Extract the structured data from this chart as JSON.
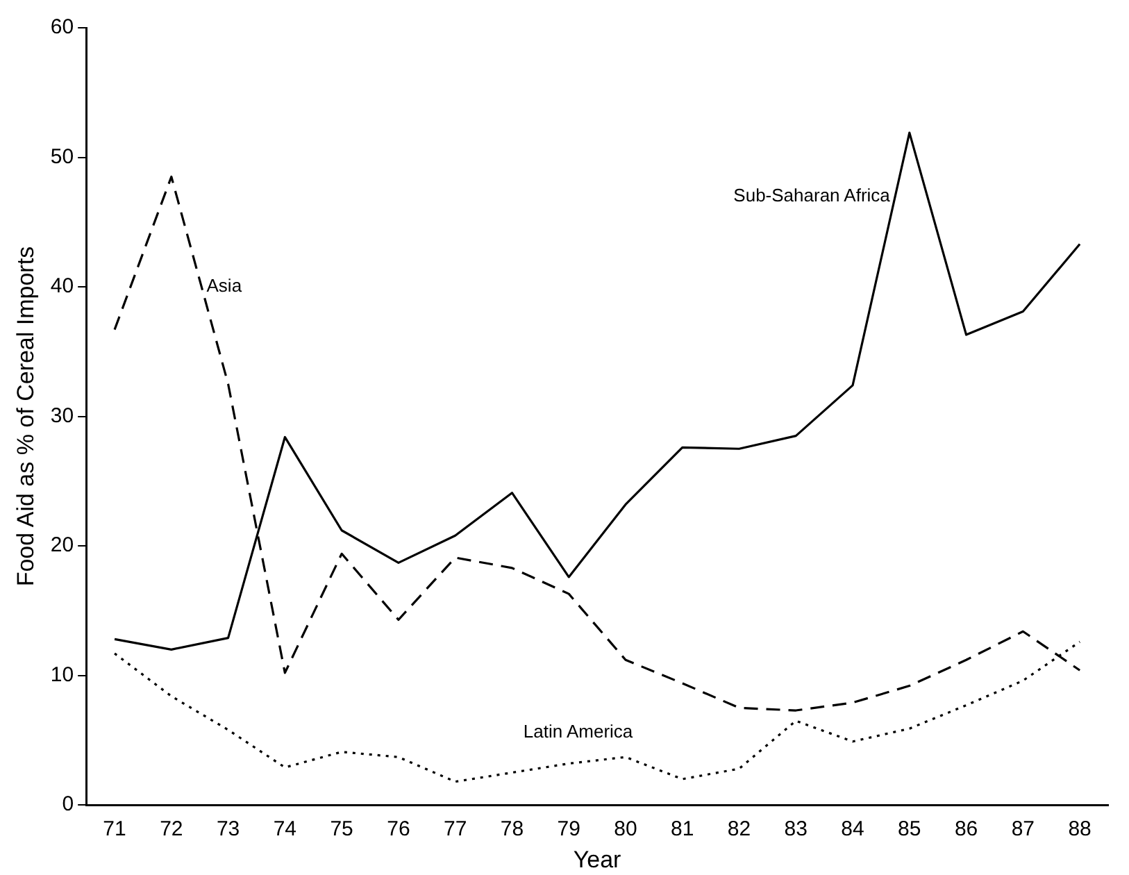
{
  "chart_data": {
    "type": "line",
    "xlabel": "Year",
    "ylabel": "Food Aid as % of Cereal Imports",
    "categories": [
      "71",
      "72",
      "73",
      "74",
      "75",
      "76",
      "77",
      "78",
      "79",
      "80",
      "81",
      "82",
      "83",
      "84",
      "85",
      "86",
      "87",
      "88"
    ],
    "ylim": [
      0,
      60
    ],
    "yticks": [
      0,
      10,
      20,
      30,
      40,
      50,
      60
    ],
    "grid": false,
    "legend": false,
    "marker": "none",
    "series": [
      {
        "name": "Sub-Saharan Africa",
        "color": "#000000",
        "line_style": "solid",
        "values": [
          12.8,
          12,
          12.9,
          28.4,
          21.2,
          18.7,
          20.8,
          24.1,
          17.6,
          23.2,
          27.6,
          27.5,
          28.5,
          32.4,
          51.9,
          36.3,
          38.1,
          43.3
        ]
      },
      {
        "name": "Asia",
        "color": "#000000",
        "line_style": "dashed",
        "values": [
          36.7,
          48.5,
          32.5,
          10.2,
          19.4,
          14.3,
          19.1,
          18.3,
          16.3,
          11.2,
          9.4,
          7.5,
          7.3,
          7.9,
          9.2,
          11.2,
          13.4,
          10.4
        ]
      },
      {
        "name": "Latin America",
        "color": "#000000",
        "line_style": "dotted",
        "values": [
          11.7,
          8.4,
          5.8,
          2.9,
          4.1,
          3.7,
          1.8,
          2.5,
          3.2,
          3.7,
          2.0,
          2.8,
          6.5,
          4.9,
          5.9,
          7.7,
          9.6,
          12.6
        ]
      }
    ]
  }
}
